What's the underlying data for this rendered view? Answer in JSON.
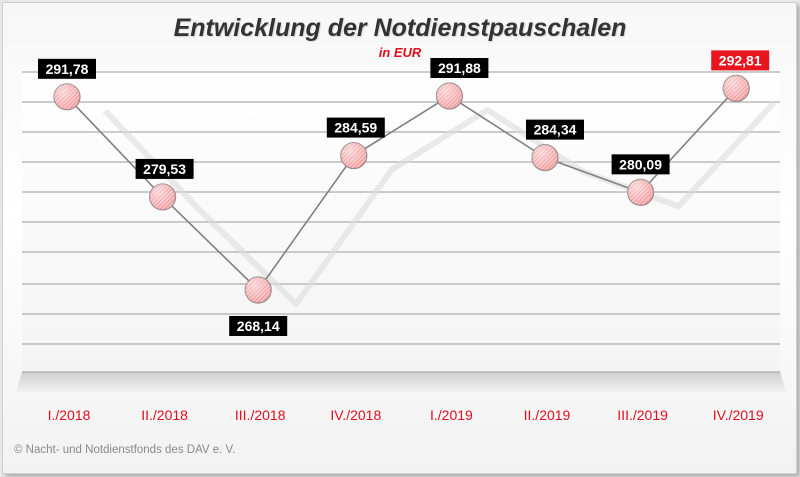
{
  "chart_data": {
    "type": "line",
    "title": "Entwicklung der Notdienstpauschalen",
    "subtitle": "in EUR",
    "categories": [
      "I./2018",
      "II./2018",
      "III./2018",
      "IV./2018",
      "I./2019",
      "II./2019",
      "III./2019",
      "IV./2019"
    ],
    "series": [
      {
        "values": [
          291.78,
          279.53,
          268.14,
          284.59,
          291.88,
          284.34,
          280.09,
          292.81
        ],
        "labels": [
          "291,78",
          "279,53",
          "268,14",
          "284,59",
          "291,88",
          "284,34",
          "280,09",
          "292,81"
        ],
        "highlight_index": 7
      }
    ],
    "xlabel": "",
    "ylabel": "",
    "ylim": [
      260,
      296
    ],
    "grid": true,
    "colors": {
      "marker": "#f4a6a8",
      "line": "#808080",
      "label_bg": "#000000",
      "highlight_bg": "#e8141e",
      "category": "#e10e1e"
    }
  },
  "footer": "© Nacht- und Notdienstfonds  des DAV e. V."
}
